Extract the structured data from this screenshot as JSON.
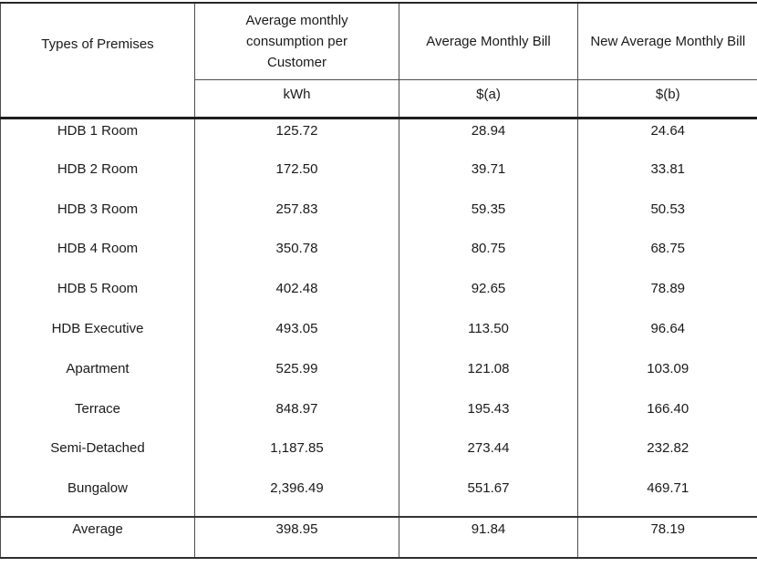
{
  "table": {
    "headers": {
      "premises": "Types of Premises",
      "consumption": "Average monthly consumption per Customer",
      "bill": "Average Monthly Bill",
      "new_bill": "New Average Monthly Bill"
    },
    "units": {
      "consumption": "kWh",
      "bill": "$(a)",
      "new_bill": "$(b)"
    },
    "rows": [
      {
        "premises": "HDB 1 Room",
        "kwh": "125.72",
        "bill_a": "28.94",
        "bill_b": "24.64"
      },
      {
        "premises": "HDB 2 Room",
        "kwh": "172.50",
        "bill_a": "39.71",
        "bill_b": "33.81"
      },
      {
        "premises": "HDB 3 Room",
        "kwh": "257.83",
        "bill_a": "59.35",
        "bill_b": "50.53"
      },
      {
        "premises": "HDB 4 Room",
        "kwh": "350.78",
        "bill_a": "80.75",
        "bill_b": "68.75"
      },
      {
        "premises": "HDB 5 Room",
        "kwh": "402.48",
        "bill_a": "92.65",
        "bill_b": "78.89"
      },
      {
        "premises": "HDB Executive",
        "kwh": "493.05",
        "bill_a": "113.50",
        "bill_b": "96.64"
      },
      {
        "premises": "Apartment",
        "kwh": "525.99",
        "bill_a": "121.08",
        "bill_b": "103.09"
      },
      {
        "premises": "Terrace",
        "kwh": "848.97",
        "bill_a": "195.43",
        "bill_b": "166.40"
      },
      {
        "premises": "Semi-Detached",
        "kwh": "1,187.85",
        "bill_a": "273.44",
        "bill_b": "232.82"
      },
      {
        "premises": "Bungalow",
        "kwh": "2,396.49",
        "bill_a": "551.67",
        "bill_b": "469.71"
      }
    ],
    "summary": {
      "premises": "Average",
      "kwh": "398.95",
      "bill_a": "91.84",
      "bill_b": "78.19"
    }
  },
  "colors": {
    "background": "#ffffff",
    "text": "#1a1a1a",
    "grid_line": "#4d4d4d",
    "heavy_line": "#1f1f1f"
  }
}
